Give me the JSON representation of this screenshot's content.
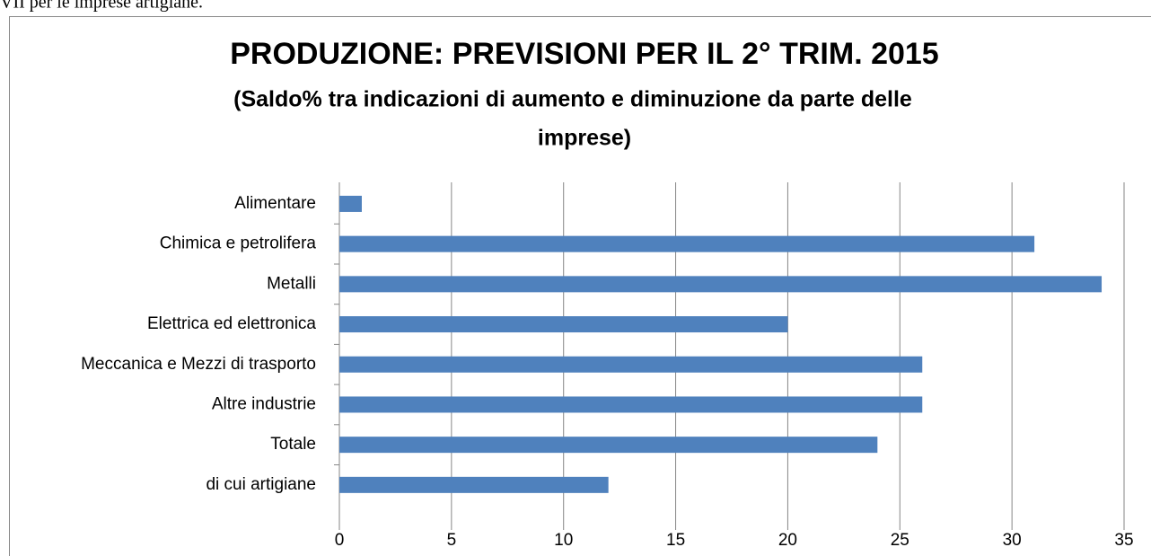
{
  "page_fragment": "VII per le imprese artigiane.",
  "chart_data": {
    "type": "hbar",
    "title": "PRODUZIONE: PREVISIONI PER IL 2° TRIM. 2015",
    "subtitle": [
      "(Saldo% tra indicazioni di aumento e diminuzione da parte delle",
      "imprese)"
    ],
    "categories": [
      "Alimentare",
      "Chimica e petrolifera",
      "Metalli",
      "Elettrica ed elettronica",
      "Meccanica e Mezzi di trasporto",
      "Altre industrie",
      "Totale",
      "di cui artigiane"
    ],
    "values": [
      1,
      31,
      34,
      20,
      26,
      26,
      24,
      12
    ],
    "color": "#4f81bd",
    "xlim": [
      0,
      35
    ],
    "xticks": [
      0,
      5,
      10,
      15,
      20,
      25,
      30,
      35
    ],
    "grid": true
  }
}
